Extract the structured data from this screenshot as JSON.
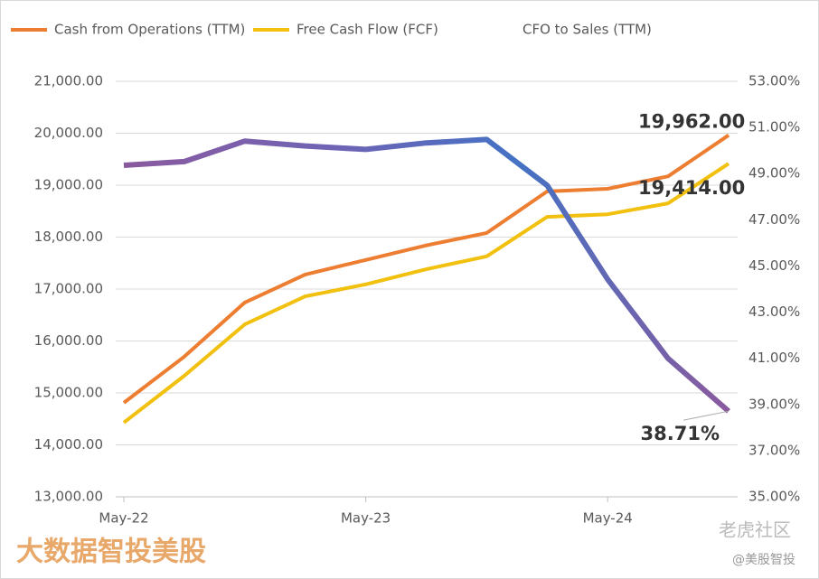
{
  "chart_data": {
    "type": "line",
    "categories": [
      "May-22",
      null,
      null,
      null,
      "May-23",
      null,
      null,
      null,
      "May-24",
      null,
      null
    ],
    "series": [
      {
        "name": "Cash from Operations (TTM)",
        "color": "#ed7d31",
        "axis": "y",
        "values": [
          14810,
          15700,
          16740,
          17280,
          17560,
          17840,
          18080,
          18880,
          18930,
          19170,
          19962
        ],
        "value_labels": [
          null,
          null,
          null,
          null,
          null,
          null,
          null,
          null,
          null,
          null,
          "19,962.00"
        ]
      },
      {
        "name": "Free Cash Flow (FCF)",
        "color": "#f2c00f",
        "axis": "y",
        "values": [
          14430,
          15330,
          16320,
          16860,
          17090,
          17380,
          17630,
          18390,
          18440,
          18650,
          19414
        ],
        "value_labels": [
          null,
          null,
          null,
          null,
          null,
          null,
          null,
          null,
          null,
          null,
          "19,414.00"
        ]
      },
      {
        "name": "CFO to Sales (TTM)",
        "color": "#4472c4",
        "axis": "y2",
        "values": [
          49.36,
          49.52,
          50.41,
          50.2,
          50.05,
          50.33,
          50.48,
          48.49,
          44.42,
          40.99,
          38.71
        ],
        "value_labels": [
          null,
          null,
          null,
          null,
          null,
          null,
          null,
          null,
          null,
          null,
          "38.71%"
        ]
      }
    ],
    "ylim": [
      13000,
      21000
    ],
    "yticks": [
      {
        "value": 13000,
        "label": "13,000.00"
      },
      {
        "value": 14000,
        "label": "14,000.00"
      },
      {
        "value": 15000,
        "label": "15,000.00"
      },
      {
        "value": 16000,
        "label": "16,000.00"
      },
      {
        "value": 17000,
        "label": "17,000.00"
      },
      {
        "value": 18000,
        "label": "18,000.00"
      },
      {
        "value": 19000,
        "label": "19,000.00"
      },
      {
        "value": 20000,
        "label": "20,000.00"
      },
      {
        "value": 21000,
        "label": "21,000.00"
      }
    ],
    "y2lim": [
      35,
      53
    ],
    "y2ticks": [
      {
        "value": 35,
        "label": "35.00%"
      },
      {
        "value": 37,
        "label": "37.00%"
      },
      {
        "value": 39,
        "label": "39.00%"
      },
      {
        "value": 41,
        "label": "41.00%"
      },
      {
        "value": 43,
        "label": "43.00%"
      },
      {
        "value": 45,
        "label": "45.00%"
      },
      {
        "value": 47,
        "label": "47.00%"
      },
      {
        "value": 49,
        "label": "49.00%"
      },
      {
        "value": 51,
        "label": "51.00%"
      },
      {
        "value": 53,
        "label": "53.00%"
      }
    ],
    "grid": true,
    "legend": "top"
  },
  "watermarks": [
    "大数据智投美股",
    "老虎社区",
    "@美股智投"
  ]
}
